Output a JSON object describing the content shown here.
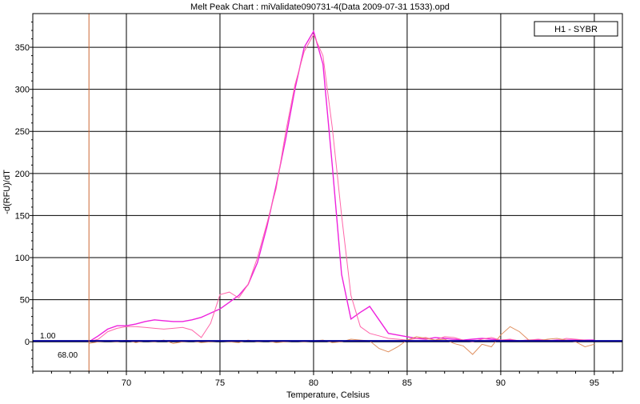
{
  "colors": {
    "grid": "#000000",
    "baseline": "#000099",
    "threshold_marker": "#cc6633",
    "series_a": "#ee22dd",
    "series_b": "#ff66aa",
    "series_c": "#e09060"
  },
  "chart_data": {
    "type": "line",
    "title": "Melt Peak Chart : miValidate090731-4(Data 2009-07-31 1533).opd",
    "xlabel": "Temperature, Celsius",
    "ylabel": "-d(RFU)/dT",
    "xlim": [
      65,
      96.5
    ],
    "ylim": [
      -35,
      390
    ],
    "x_ticks": [
      70,
      75,
      80,
      85,
      90,
      95
    ],
    "x_tick_labels": [
      "70",
      "75",
      "80",
      "85",
      "90",
      "95"
    ],
    "y_ticks": [
      0,
      50,
      100,
      150,
      200,
      250,
      300,
      350
    ],
    "y_tick_labels": [
      "0",
      "50",
      "100",
      "150",
      "200",
      "250",
      "300",
      "350"
    ],
    "grid": true,
    "legend": {
      "position": "top-right",
      "entries": [
        "H1 - SYBR"
      ]
    },
    "threshold": {
      "value": 1.0,
      "label": "1.00"
    },
    "marker_line": {
      "x": 68.0,
      "label": "68.00"
    },
    "series": [
      {
        "x": [
          68.0,
          68.5,
          69.0,
          69.5,
          70.0,
          70.5,
          71.0,
          71.5,
          72.0,
          72.5,
          73.0,
          73.5,
          74.0,
          74.5,
          75.0,
          75.5,
          76.0,
          76.5,
          77.0,
          77.5,
          78.0,
          78.5,
          79.0,
          79.5,
          80.0,
          80.5,
          81.0,
          81.5,
          82.0,
          82.5,
          83.0,
          83.5,
          84.0,
          84.5,
          85.0,
          85.5,
          86.0,
          86.5,
          87.0,
          87.5,
          88.0,
          88.5,
          89.0,
          89.5,
          90.0,
          90.5,
          91.0,
          91.5,
          92.0,
          92.5,
          93.0,
          93.5,
          94.0,
          94.5,
          95.0
        ],
        "values": [
          0,
          7,
          15,
          19,
          19,
          21,
          24,
          26,
          25,
          24,
          24,
          26,
          29,
          34,
          39,
          47,
          55,
          68,
          94,
          136,
          186,
          240,
          300,
          350,
          369,
          330,
          210,
          80,
          27,
          35,
          42,
          26,
          10,
          8,
          6,
          4,
          3,
          5,
          4,
          3,
          2,
          3,
          4,
          3,
          2,
          2,
          1,
          2,
          2,
          1,
          2,
          2,
          2,
          2,
          2
        ]
      },
      {
        "x": [
          68.0,
          68.5,
          69.0,
          69.5,
          70.0,
          70.5,
          71.0,
          71.5,
          72.0,
          72.5,
          73.0,
          73.5,
          74.0,
          74.5,
          75.0,
          75.5,
          76.0,
          76.5,
          77.0,
          77.5,
          78.0,
          78.5,
          79.0,
          79.5,
          80.0,
          80.5,
          81.0,
          81.5,
          82.0,
          82.5,
          83.0,
          83.5,
          84.0,
          84.5,
          85.0,
          85.5,
          86.0,
          86.5,
          87.0,
          87.5,
          88.0,
          88.5,
          89.0,
          89.5,
          90.0,
          90.5,
          91.0,
          91.5,
          92.0,
          92.5,
          93.0,
          93.5,
          94.0,
          94.5,
          95.0
        ],
        "values": [
          0,
          3,
          12,
          16,
          18,
          18,
          17,
          16,
          15,
          16,
          17,
          14,
          5,
          22,
          56,
          59,
          52,
          68,
          100,
          140,
          182,
          248,
          305,
          345,
          365,
          340,
          255,
          150,
          55,
          18,
          10,
          7,
          4,
          3,
          2,
          4,
          5,
          2,
          6,
          5,
          2,
          0,
          3,
          5,
          2,
          3,
          1,
          2,
          3,
          2,
          1,
          4,
          3,
          2,
          1
        ]
      },
      {
        "x": [
          68.0,
          68.5,
          69.0,
          69.5,
          70.0,
          70.5,
          71.0,
          71.5,
          72.0,
          72.5,
          73.0,
          73.5,
          74.0,
          74.5,
          75.0,
          75.5,
          76.0,
          76.5,
          77.0,
          77.5,
          78.0,
          78.5,
          79.0,
          79.5,
          80.0,
          80.5,
          81.0,
          81.5,
          82.0,
          82.5,
          83.0,
          83.5,
          84.0,
          84.5,
          85.0,
          85.5,
          86.0,
          86.5,
          87.0,
          87.5,
          88.0,
          88.5,
          89.0,
          89.5,
          90.0,
          90.5,
          91.0,
          91.5,
          92.0,
          92.5,
          93.0,
          93.5,
          94.0,
          94.5,
          95.0
        ],
        "values": [
          -2,
          0,
          1,
          0,
          2,
          -1,
          1,
          0,
          2,
          -2,
          0,
          1,
          -1,
          0,
          1,
          0,
          -1,
          2,
          0,
          1,
          -1,
          0,
          1,
          0,
          1,
          2,
          -1,
          0,
          3,
          2,
          1,
          -8,
          -12,
          -6,
          2,
          6,
          4,
          2,
          3,
          -2,
          -5,
          -15,
          -3,
          -6,
          8,
          18,
          12,
          2,
          1,
          3,
          4,
          2,
          0,
          -6,
          -3
        ]
      }
    ]
  }
}
